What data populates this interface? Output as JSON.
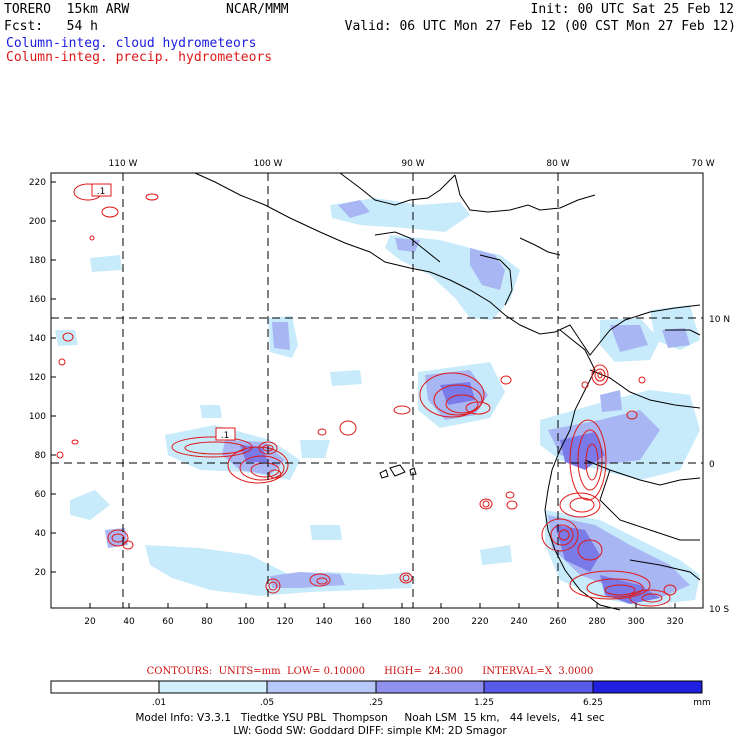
{
  "header": {
    "model": "TORERO  15km ARW",
    "center": "NCAR/MMM",
    "init": "Init: 00 UTC Sat 25 Feb 12",
    "fcst": "Fcst:   54 h",
    "valid": "Valid: 06 UTC Mon 27 Feb 12 (00 CST Mon 27 Feb 12)",
    "field1": "Column-integ. cloud hydrometeors",
    "field2": "Column-integ. precip. hydrometeors"
  },
  "map": {
    "lon_labels": [
      "110 W",
      "100 W",
      "90 W",
      "80 W",
      "70 W"
    ],
    "lat_labels": [
      "10 N",
      "0",
      "10 S"
    ],
    "x_ticks": [
      "20",
      "40",
      "60",
      "80",
      "100",
      "120",
      "140",
      "160",
      "180",
      "200",
      "220",
      "240",
      "260",
      "280",
      "300",
      "320"
    ],
    "y_ticks": [
      "220",
      "200",
      "180",
      "160",
      "140",
      "120",
      "100",
      "80",
      "60",
      "40",
      "20"
    ],
    "contour_labels": [
      ".1",
      ".1"
    ]
  },
  "contours_text": "CONTOURS:  UNITS=mm  LOW= 0.10000      HIGH=  24.300      INTERVAL=X  3.0000",
  "colorbar": {
    "labels": [
      ".01",
      ".05",
      ".25",
      "1.25",
      "6.25"
    ],
    "unit": "mm",
    "colors": [
      "#ffffff",
      "#d2f0fb",
      "#b8c8f8",
      "#9090ee",
      "#5a5ae8",
      "#2020e0"
    ]
  },
  "footer": {
    "line1": "Model Info: V3.3.1   Tiedtke YSU PBL  Thompson     Noah LSM  15 km,   44 levels,   41 sec",
    "line2": "LW: Godd SW: Goddard DIFF: simple KM: 2D Smagor"
  },
  "colors": {
    "cloud_light": "#c7ebfa",
    "cloud_mid": "#a9b6f4",
    "cloud_dark": "#7a7ae8",
    "precip": "#e01818"
  }
}
